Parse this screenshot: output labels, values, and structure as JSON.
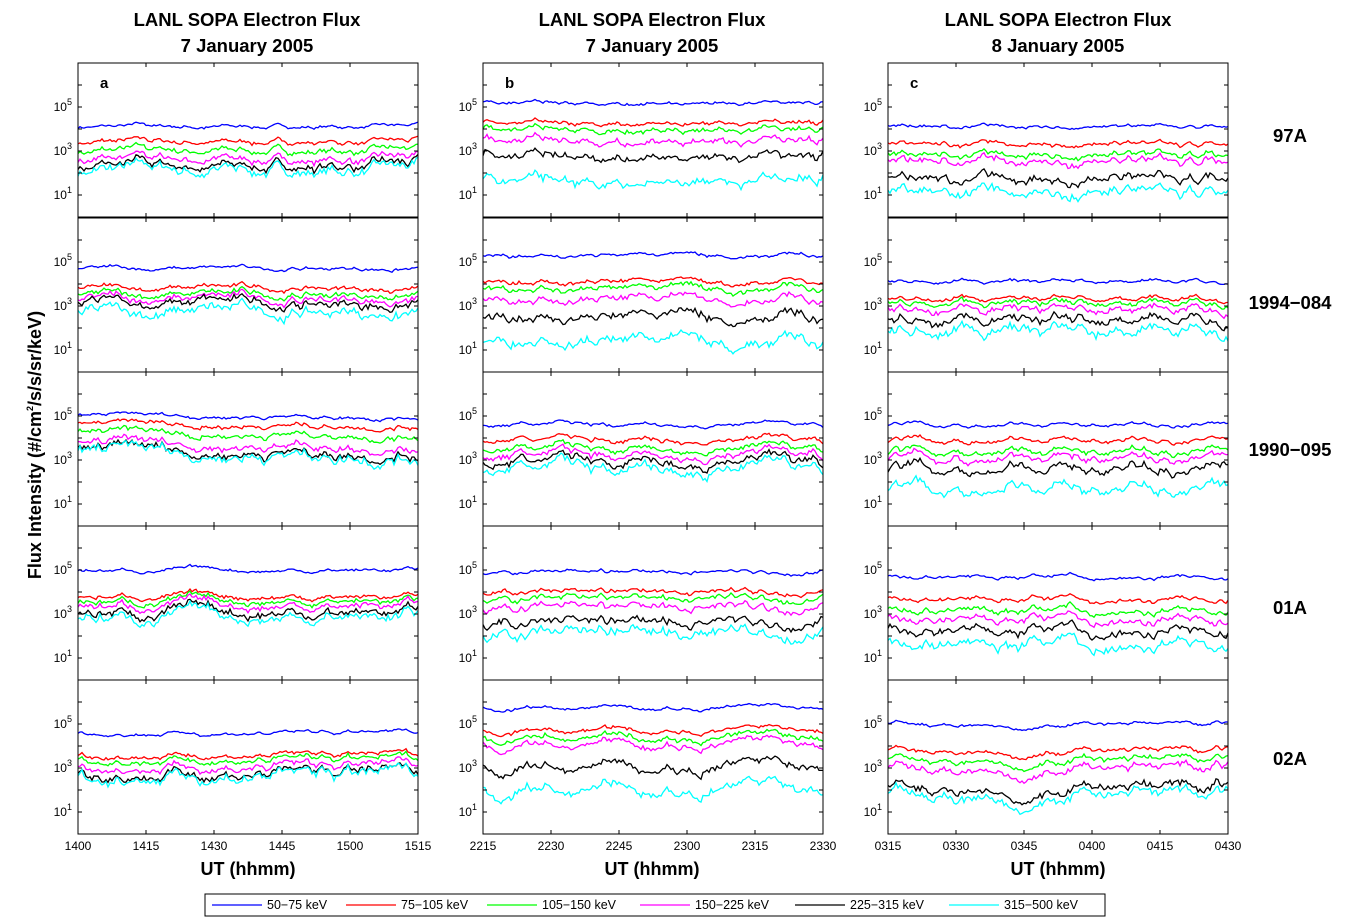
{
  "chart_data": {
    "type": "line",
    "ylabel_main": "Flux Intensity (#/cm",
    "ylabel_sup": "2",
    "ylabel_tail": "/s/s/sr/keV)",
    "ylim_exp": [
      0,
      7
    ],
    "yticks": [
      {
        "base": "10",
        "exp": "1"
      },
      {
        "base": "10",
        "exp": "3"
      },
      {
        "base": "10",
        "exp": "5"
      }
    ],
    "columns": [
      {
        "title1": "LANL SOPA Electron Flux",
        "title2": "7 January 2005",
        "panel": "a",
        "xticks": [
          "1400",
          "1415",
          "1430",
          "1445",
          "1500",
          "1515"
        ],
        "xlabel": "UT (hhmm)"
      },
      {
        "title1": "LANL SOPA Electron Flux",
        "title2": "7 January 2005",
        "panel": "b",
        "xticks": [
          "2215",
          "2230",
          "2245",
          "2300",
          "2315",
          "2330"
        ],
        "xlabel": "UT (hhmm)"
      },
      {
        "title1": "LANL SOPA Electron Flux",
        "title2": "8 January 2005",
        "panel": "c",
        "xticks": [
          "0315",
          "0330",
          "0345",
          "0400",
          "0415",
          "0430"
        ],
        "xlabel": "UT (hhmm)"
      }
    ],
    "satellites": [
      "97A",
      "1994−084",
      "1990−095",
      "01A",
      "02A"
    ],
    "series": [
      {
        "name": "50−75 keV",
        "color": "#0000ff"
      },
      {
        "name": "75−105 keV",
        "color": "#ff0000"
      },
      {
        "name": "105−150 keV",
        "color": "#00ff00"
      },
      {
        "name": "150−225 keV",
        "color": "#ff00ff"
      },
      {
        "name": "225−315 keV",
        "color": "#000000"
      },
      {
        "name": "315−500 keV",
        "color": "#00ffff"
      }
    ],
    "base_levels_log10": [
      [
        [
          4.1,
          3.4,
          3.0,
          2.6,
          2.3,
          2.1
        ],
        [
          5.2,
          4.3,
          4.0,
          3.5,
          2.8,
          1.7
        ],
        [
          4.1,
          3.3,
          2.8,
          2.5,
          1.7,
          1.1
        ]
      ],
      [
        [
          4.7,
          3.8,
          3.5,
          3.3,
          3.1,
          2.7
        ],
        [
          5.3,
          4.1,
          3.8,
          3.3,
          2.5,
          1.4
        ],
        [
          4.1,
          3.3,
          3.1,
          2.8,
          2.3,
          1.8
        ]
      ],
      [
        [
          5.0,
          4.6,
          4.2,
          3.7,
          3.4,
          3.3
        ],
        [
          4.6,
          3.9,
          3.5,
          3.2,
          2.9,
          2.6
        ],
        [
          4.6,
          3.9,
          3.4,
          3.1,
          2.6,
          1.7
        ]
      ],
      [
        [
          5.0,
          3.8,
          3.6,
          3.4,
          3.1,
          2.9
        ],
        [
          4.9,
          4.0,
          3.7,
          3.3,
          2.6,
          2.1
        ],
        [
          4.7,
          3.7,
          3.2,
          2.8,
          2.3,
          1.7
        ]
      ],
      [
        [
          4.6,
          3.6,
          3.4,
          3.1,
          2.8,
          2.7
        ],
        [
          5.8,
          4.8,
          4.5,
          4.2,
          3.2,
          2.2
        ],
        [
          5.0,
          3.8,
          3.4,
          3.0,
          2.1,
          1.8
        ]
      ]
    ]
  }
}
